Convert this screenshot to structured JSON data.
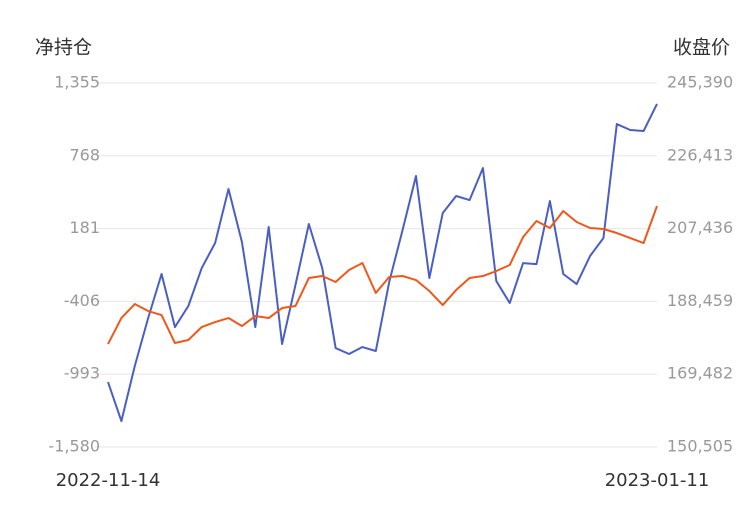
{
  "chart_data": {
    "type": "line",
    "y_title": "净持仓",
    "y2_title": "收盘价",
    "categories": [
      "2022-11-14",
      null,
      null,
      null,
      null,
      null,
      null,
      null,
      null,
      null,
      null,
      null,
      null,
      null,
      null,
      null,
      null,
      null,
      null,
      null,
      null,
      null,
      null,
      null,
      null,
      null,
      null,
      null,
      null,
      null,
      null,
      null,
      null,
      null,
      null,
      null,
      null,
      null,
      null,
      null,
      null,
      "2023-01-11"
    ],
    "ylim": [
      -1580,
      1355
    ],
    "yticks": [
      {
        "value": -1580,
        "label": "-1,580"
      },
      -993,
      -406,
      181,
      768,
      {
        "value": 1355,
        "label": "1,355"
      }
    ],
    "y2lim": [
      150505,
      245390
    ],
    "y2ticks": [
      {
        "value": 150505,
        "label": "150,505"
      },
      {
        "value": 169482,
        "label": "169,482"
      },
      {
        "value": 188459,
        "label": "188,459"
      },
      {
        "value": 207436,
        "label": "207,436"
      },
      {
        "value": 226413,
        "label": "226,413"
      },
      {
        "value": 245390,
        "label": "245,390"
      }
    ],
    "grid": true,
    "series": [
      {
        "color": "#4a5fc1",
        "values": [
          -1056,
          -1371,
          -927,
          -540,
          -185,
          -613,
          -443,
          -137,
          65,
          500,
          73,
          -613,
          194,
          -750,
          -274,
          218,
          -137,
          -782,
          -830,
          -774,
          -806,
          -250,
          170,
          605,
          -218,
          307,
          444,
          411,
          669,
          -242,
          -419,
          -97,
          -105,
          403,
          -185,
          -266,
          -40,
          105,
          1024,
          976,
          968,
          1186
        ]
      },
      {
        "color": "#f0581a",
        "axis": "y2",
        "values": [
          177347,
          184125,
          187775,
          185950,
          184907,
          177607,
          178390,
          181779,
          183083,
          184125,
          182040,
          184647,
          184125,
          186732,
          187254,
          194553,
          195075,
          193511,
          196639,
          198464,
          190643,
          194814,
          195075,
          194032,
          191164,
          187514,
          191425,
          194553,
          195075,
          196379,
          197943,
          205243,
          209414,
          207589,
          212021,
          209153,
          207589,
          207329,
          206286,
          204983,
          203679,
          213325
        ]
      }
    ]
  }
}
